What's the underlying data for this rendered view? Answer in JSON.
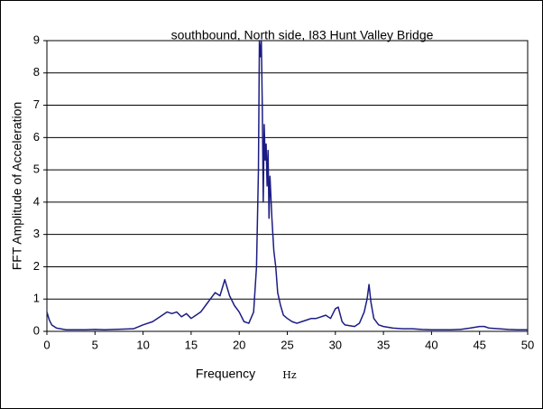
{
  "chart_data": {
    "type": "line",
    "title": "southbound, North side, I83 Hunt Valley Bridge",
    "x_label": "Frequency",
    "x_unit": "Hz",
    "y_label": "FFT  Amplitude of Acceleration",
    "xlim": [
      0,
      50
    ],
    "xticks": [
      0,
      5,
      10,
      15,
      20,
      25,
      30,
      35,
      40,
      45,
      50
    ],
    "ylim": [
      0,
      9
    ],
    "yticks": [
      0,
      1,
      2,
      3,
      4,
      5,
      6,
      7,
      8,
      9
    ],
    "grid": true,
    "series": [
      {
        "color": "#1c1c84",
        "x": [
          0,
          0.25,
          0.5,
          1,
          2,
          3,
          4,
          5,
          6,
          7,
          8,
          9,
          10,
          11,
          12,
          12.5,
          13,
          13.5,
          14,
          14.5,
          15,
          15.5,
          16,
          16.5,
          17,
          17.5,
          18,
          18.5,
          19,
          19.5,
          20,
          20.5,
          21,
          21.5,
          21.8,
          22,
          22.1,
          22.2,
          22.3,
          22.4,
          22.5,
          22.6,
          22.7,
          22.8,
          22.9,
          23,
          23.1,
          23.2,
          23.4,
          23.6,
          23.8,
          24,
          24.3,
          24.6,
          25,
          25.5,
          26,
          26.5,
          27,
          27.5,
          28,
          28.5,
          29,
          29.5,
          30,
          30.3,
          30.7,
          31,
          32,
          32.5,
          33,
          33.3,
          33.5,
          33.7,
          34,
          34.5,
          35,
          36,
          37,
          38,
          39,
          40,
          41,
          42,
          43,
          44,
          45,
          45.5,
          46,
          47,
          48,
          49,
          50
        ],
        "values": [
          0.6,
          0.35,
          0.2,
          0.1,
          0.05,
          0.05,
          0.05,
          0.06,
          0.05,
          0.06,
          0.07,
          0.08,
          0.2,
          0.3,
          0.5,
          0.6,
          0.55,
          0.6,
          0.45,
          0.55,
          0.4,
          0.5,
          0.6,
          0.8,
          1.0,
          1.2,
          1.1,
          1.6,
          1.1,
          0.8,
          0.6,
          0.3,
          0.25,
          0.6,
          2.0,
          5,
          9,
          8.5,
          9,
          7,
          4,
          6.4,
          5.3,
          5.8,
          4.5,
          5.6,
          3.5,
          4.8,
          3.5,
          2.5,
          2.0,
          1.2,
          0.8,
          0.5,
          0.4,
          0.3,
          0.25,
          0.3,
          0.35,
          0.4,
          0.4,
          0.45,
          0.5,
          0.4,
          0.7,
          0.75,
          0.3,
          0.2,
          0.15,
          0.25,
          0.6,
          1.0,
          1.45,
          0.9,
          0.4,
          0.2,
          0.15,
          0.1,
          0.08,
          0.08,
          0.06,
          0.05,
          0.05,
          0.05,
          0.06,
          0.1,
          0.15,
          0.15,
          0.1,
          0.08,
          0.06,
          0.05,
          0.05
        ]
      }
    ]
  }
}
